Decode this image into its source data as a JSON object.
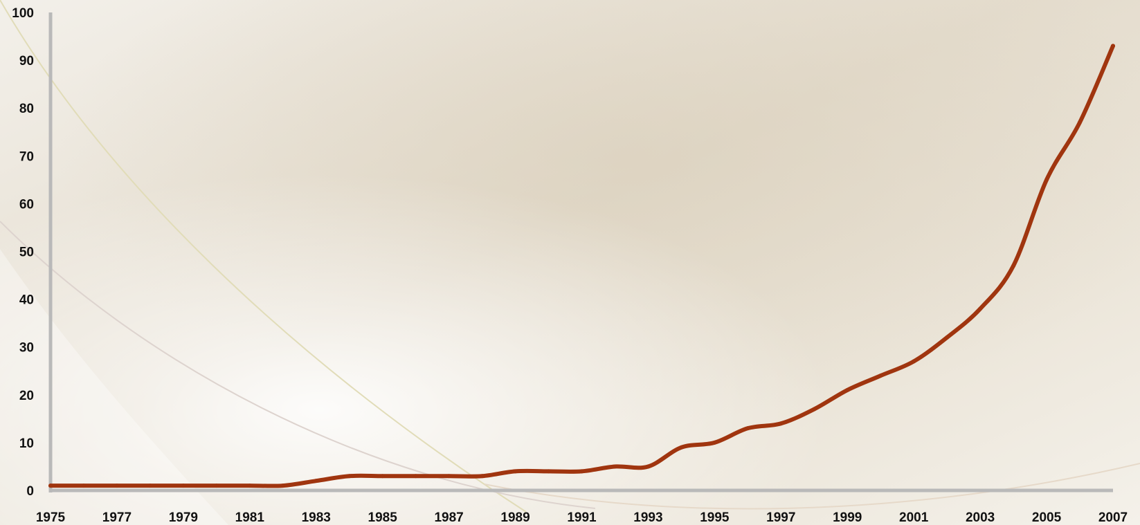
{
  "chart_data": {
    "type": "line",
    "title": "",
    "xlabel": "",
    "ylabel": "",
    "x": [
      1975,
      1976,
      1977,
      1978,
      1979,
      1980,
      1981,
      1982,
      1983,
      1984,
      1985,
      1986,
      1987,
      1988,
      1989,
      1990,
      1991,
      1992,
      1993,
      1994,
      1995,
      1996,
      1997,
      1998,
      1999,
      2000,
      2001,
      2002,
      2003,
      2004,
      2005,
      2006,
      2007
    ],
    "series": [
      {
        "values": [
          1,
          1,
          1,
          1,
          1,
          1,
          1,
          1,
          2,
          3,
          3,
          3,
          3,
          3,
          4,
          4,
          4,
          5,
          5,
          9,
          10,
          13,
          14,
          17,
          21,
          24,
          27,
          32,
          38,
          47,
          65,
          77,
          93
        ]
      }
    ],
    "xlim": [
      1975,
      2007
    ],
    "ylim": [
      0,
      100
    ],
    "xticks": [
      "1975",
      "1977",
      "1979",
      "1981",
      "1983",
      "1985",
      "1987",
      "1989",
      "1991",
      "1993",
      "1995",
      "1997",
      "1999",
      "2001",
      "2003",
      "2005",
      "2007"
    ],
    "yticks": [
      "0",
      "10",
      "20",
      "30",
      "40",
      "50",
      "60",
      "70",
      "80",
      "90",
      "100"
    ],
    "grid": false,
    "legend": "none",
    "colors": {
      "line": "#a0350f",
      "axis": "#b9b9b9",
      "text": "#111111"
    }
  }
}
